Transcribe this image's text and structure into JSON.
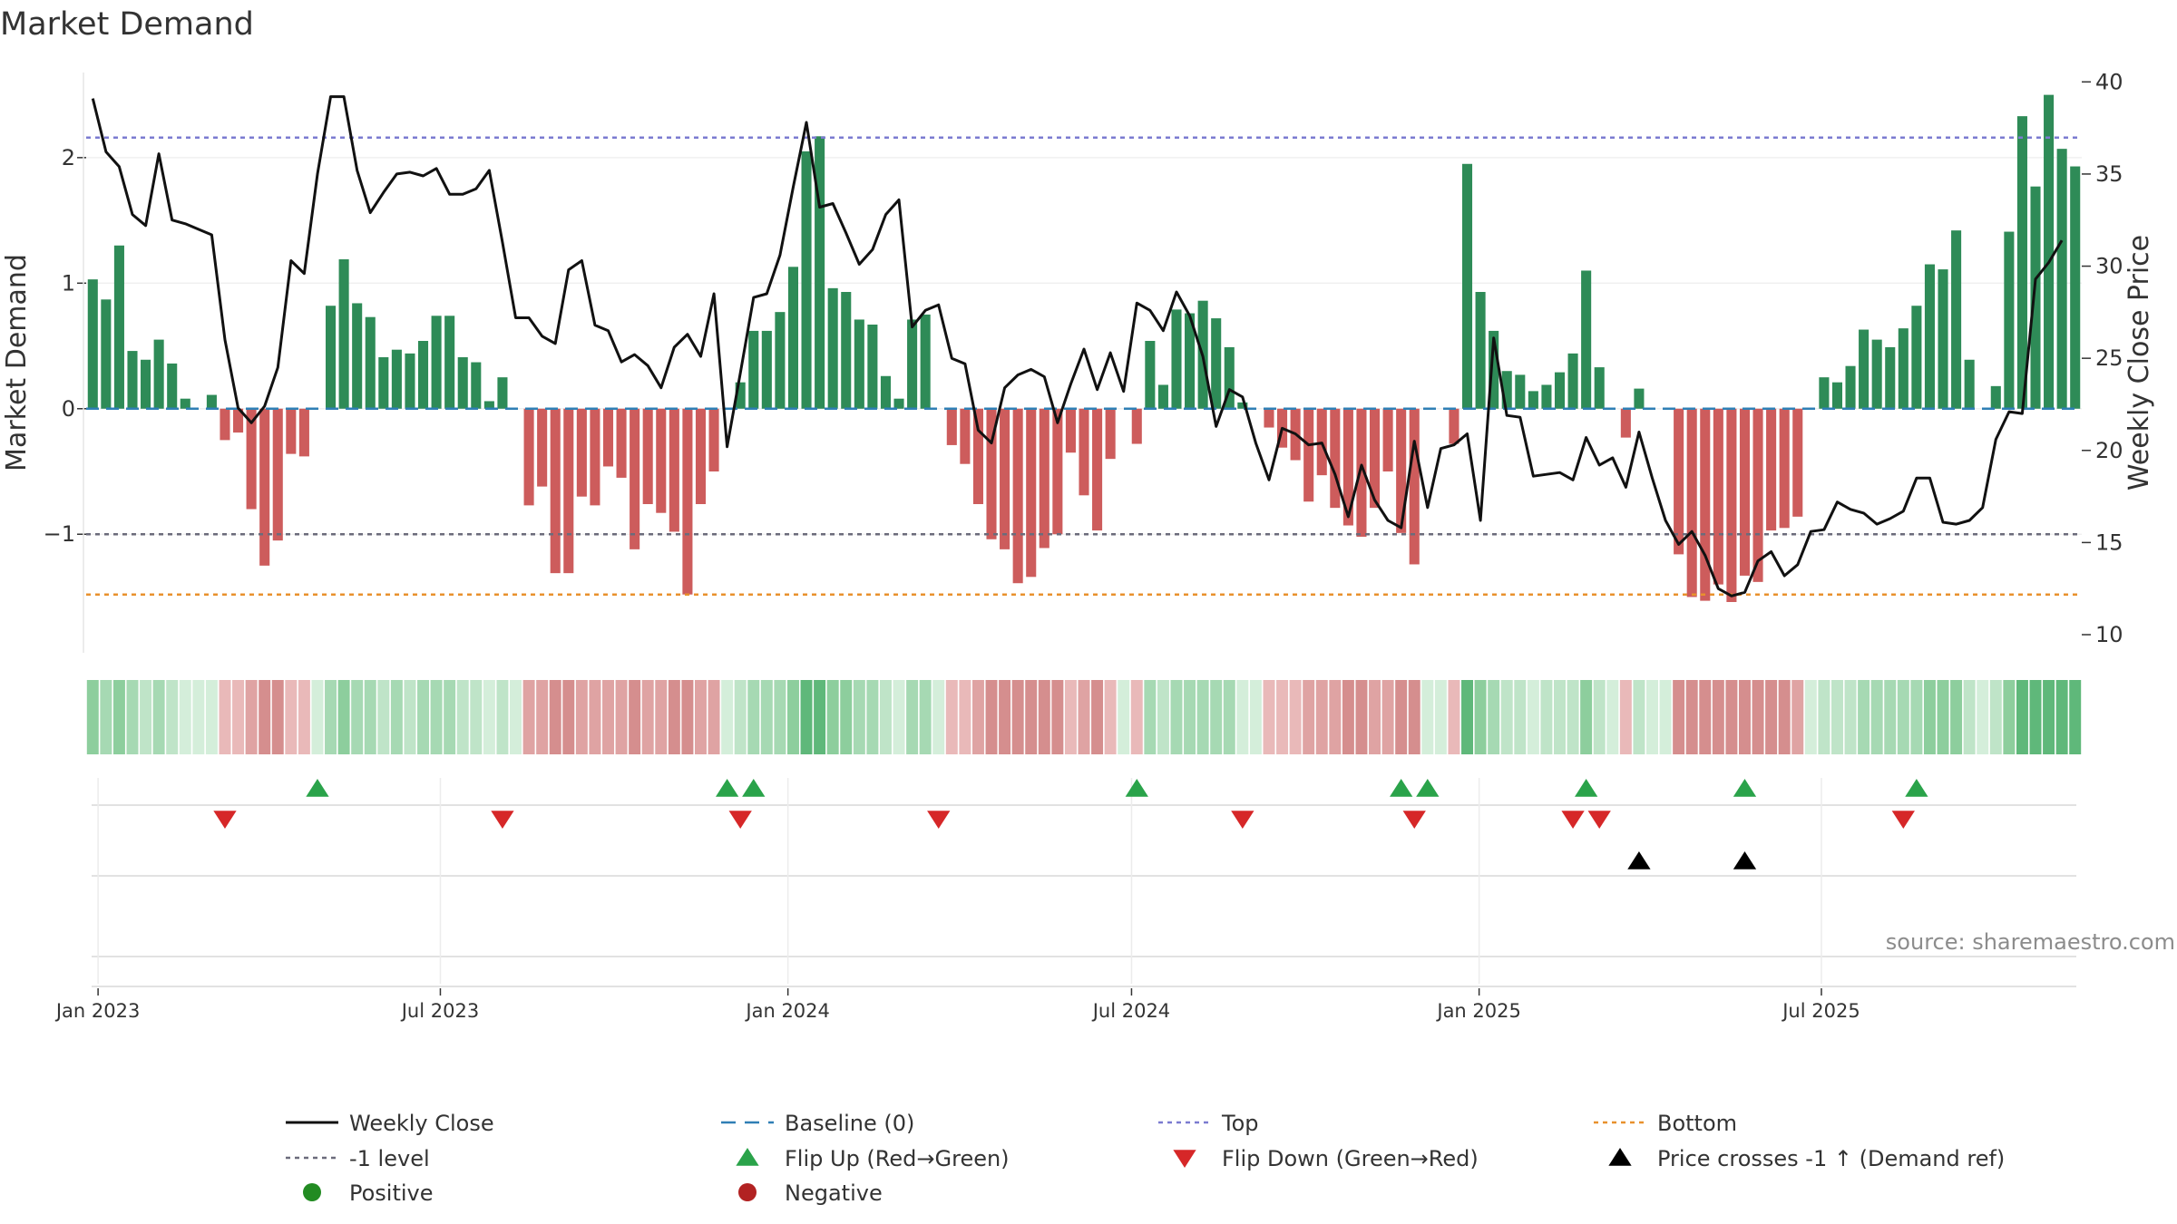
{
  "chart_data": {
    "type": "bar",
    "title": "Market Demand",
    "ylabel": "Market Demand",
    "y2label": "Weekly Close Price",
    "ylim": [
      -1.8,
      2.75
    ],
    "y2lim": [
      10,
      41
    ],
    "yticks": [
      -1,
      0,
      1,
      2
    ],
    "ytick_labels": [
      "−1",
      "0",
      "1",
      "2"
    ],
    "y2ticks": [
      10,
      15,
      20,
      25,
      30,
      35,
      40
    ],
    "y2tick_labels": [
      "10",
      "15",
      "20",
      "25",
      "30",
      "35",
      "40"
    ],
    "x_start": "2022-12-26",
    "x_step_days": 7,
    "x_ticks": [
      {
        "label": "Jan 2023",
        "index": 0.9
      },
      {
        "label": "Jul 2023",
        "index": 26.8
      },
      {
        "label": "Jan 2024",
        "index": 53.1
      },
      {
        "label": "Jul 2024",
        "index": 79.1
      },
      {
        "label": "Jan 2025",
        "index": 105.4
      },
      {
        "label": "Jul 2025",
        "index": 131.3
      }
    ],
    "series": [
      {
        "name": "Market Demand",
        "kind": "bar",
        "values": [
          1.03,
          0.87,
          1.3,
          0.46,
          0.39,
          0.55,
          0.36,
          0.08,
          0.0,
          0.11,
          -0.25,
          -0.19,
          -0.8,
          -1.25,
          -1.05,
          -0.36,
          -0.38,
          0.0,
          0.82,
          1.19,
          0.84,
          0.73,
          0.41,
          0.47,
          0.44,
          0.54,
          0.74,
          0.74,
          0.41,
          0.37,
          0.06,
          0.25,
          0.0,
          -0.77,
          -0.62,
          -1.31,
          -1.31,
          -0.7,
          -0.77,
          -0.46,
          -0.55,
          -1.12,
          -0.76,
          -0.83,
          -0.98,
          -1.48,
          -0.76,
          -0.5,
          0.0,
          0.21,
          0.62,
          0.62,
          0.77,
          1.13,
          2.05,
          2.17,
          0.96,
          0.93,
          0.71,
          0.67,
          0.26,
          0.08,
          0.71,
          0.75,
          0.0,
          -0.29,
          -0.44,
          -0.76,
          -1.04,
          -1.12,
          -1.39,
          -1.34,
          -1.11,
          -1.0,
          -0.35,
          -0.69,
          -0.97,
          -0.4,
          0.0,
          -0.28,
          0.54,
          0.19,
          0.79,
          0.76,
          0.86,
          0.72,
          0.49,
          0.05,
          0.0,
          -0.15,
          -0.31,
          -0.41,
          -0.74,
          -0.53,
          -0.79,
          -0.93,
          -1.02,
          -0.79,
          -0.5,
          -0.99,
          -1.24,
          0.0,
          0.0,
          -0.28,
          1.95,
          0.93,
          0.62,
          0.3,
          0.27,
          0.14,
          0.19,
          0.29,
          0.44,
          1.1,
          0.33,
          0.0,
          -0.23,
          0.16,
          0.0,
          0.0,
          -1.16,
          -1.5,
          -1.53,
          -1.4,
          -1.54,
          -1.33,
          -1.38,
          -0.97,
          -0.95,
          -0.86,
          0.0,
          0.25,
          0.21,
          0.34,
          0.63,
          0.55,
          0.49,
          0.64,
          0.82,
          1.15,
          1.11,
          1.42,
          0.39,
          0.0,
          0.18,
          1.41,
          2.33,
          1.77,
          2.5,
          2.07,
          1.93
        ]
      },
      {
        "name": "Weekly Close",
        "kind": "line",
        "color": "#111111",
        "values": [
          39.1,
          36.2,
          35.4,
          32.8,
          32.2,
          36.1,
          32.5,
          32.3,
          32.0,
          31.7,
          26.0,
          22.3,
          21.5,
          22.4,
          24.5,
          30.3,
          29.6,
          35.0,
          39.2,
          39.2,
          35.2,
          32.9,
          34.0,
          35.0,
          35.1,
          34.9,
          35.3,
          33.9,
          33.9,
          34.2,
          35.2,
          31.3,
          27.2,
          27.2,
          26.2,
          25.8,
          29.8,
          30.3,
          26.8,
          26.5,
          24.8,
          25.2,
          24.6,
          23.4,
          25.6,
          26.3,
          25.1,
          28.5,
          20.2,
          24.2,
          28.3,
          28.5,
          30.6,
          34.3,
          37.8,
          33.2,
          33.4,
          31.8,
          30.1,
          30.9,
          32.8,
          33.6,
          26.7,
          27.6,
          27.9,
          25.0,
          24.7,
          21.1,
          20.4,
          23.4,
          24.1,
          24.4,
          24.0,
          21.5,
          23.6,
          25.5,
          23.3,
          25.3,
          23.2,
          28.0,
          27.6,
          26.5,
          28.6,
          27.3,
          25.1,
          21.3,
          23.3,
          22.9,
          20.4,
          18.4,
          21.2,
          20.9,
          20.3,
          20.4,
          18.7,
          16.4,
          19.2,
          17.3,
          16.2,
          15.8,
          20.5,
          16.9,
          20.1,
          20.3,
          20.9,
          16.2,
          26.1,
          21.9,
          21.8,
          18.6,
          18.7,
          18.8,
          18.4,
          20.7,
          19.2,
          19.6,
          18.0,
          21.0,
          18.5,
          16.2,
          14.9,
          15.6,
          14.3,
          12.5,
          12.1,
          12.3,
          14.0,
          14.5,
          13.2,
          13.8,
          15.6,
          15.7,
          17.2,
          16.8,
          16.6,
          16.0,
          16.3,
          16.7,
          18.5,
          18.5,
          16.1,
          16.0,
          16.2,
          16.9,
          20.6,
          22.1,
          22.0,
          29.3,
          30.2,
          31.4
        ]
      }
    ],
    "reference_lines": [
      {
        "name": "Top",
        "value": 2.16,
        "color": "#7b7bd0",
        "dash": "5,5"
      },
      {
        "name": "-1 level",
        "value": -1.0,
        "color": "#6b6b7b",
        "dash": "5,5"
      },
      {
        "name": "Bottom",
        "value": -1.48,
        "color": "#e8912d",
        "dash": "5,5"
      },
      {
        "name": "Baseline (0)",
        "value": 0.0,
        "color": "#2f7fb5",
        "dash": "14,8"
      }
    ],
    "heat_strip": {
      "positive_colors": [
        "#d4eeda",
        "#bfe4c8",
        "#a6d9b3",
        "#8dce9d",
        "#5fb87a"
      ],
      "negative_colors": [
        "#f2d4d4",
        "#e9b9b9",
        "#dfa3a3",
        "#d58e8e",
        "#cb7b7b"
      ]
    },
    "events": {
      "flip_up": [
        17,
        48,
        50,
        79,
        99,
        101,
        113,
        125,
        138
      ],
      "flip_down": [
        10,
        31,
        49,
        64,
        87,
        100,
        112,
        114,
        137
      ],
      "price_cross": [
        117,
        125
      ]
    },
    "legend": [
      {
        "label": "Weekly Close",
        "symbol": "line",
        "color": "#111111"
      },
      {
        "label": "Baseline (0)",
        "symbol": "dash",
        "color": "#2f7fb5"
      },
      {
        "label": "Top",
        "symbol": "dot",
        "color": "#7b7bd0"
      },
      {
        "label": "Bottom",
        "symbol": "dot",
        "color": "#e8912d"
      },
      {
        "label": "-1 level",
        "symbol": "dot",
        "color": "#6b6b7b"
      },
      {
        "label": "Flip Up (Red→Green)",
        "symbol": "tri-up",
        "color": "#2aa34a"
      },
      {
        "label": "Flip Down (Green→Red)",
        "symbol": "tri-down",
        "color": "#d62728"
      },
      {
        "label": "Price crosses -1 ↑ (Demand ref)",
        "symbol": "tri-up",
        "color": "#000000"
      },
      {
        "label": "Positive",
        "symbol": "circle",
        "color": "#228b22"
      },
      {
        "label": "Negative",
        "symbol": "circle",
        "color": "#b22222"
      }
    ],
    "colors": {
      "positive": "#2e8b57",
      "negative": "#cd5c5c"
    },
    "source": "source: sharemaestro.com"
  }
}
